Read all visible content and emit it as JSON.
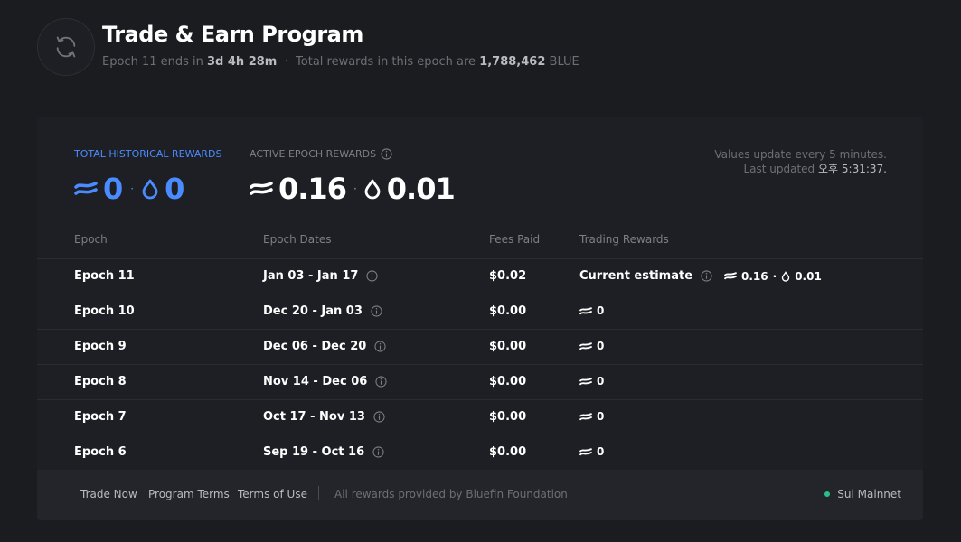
{
  "header": {
    "title": "Trade & Earn Program",
    "subtitle_prefix": "Epoch 11 ends in",
    "time_left": "3d 4h 28m",
    "subtitle_mid": "Total rewards in this epoch are",
    "total_rewards": "1,788,462",
    "token": "BLUE",
    "icon": "refresh-icon"
  },
  "stats": {
    "historical_label": "TOTAL HISTORICAL REWARDS",
    "historical_blue": "0",
    "historical_sui": "0",
    "active_label": "ACTIVE EPOCH REWARDS",
    "active_blue": "0.16",
    "active_sui": "0.01",
    "update_line1": "Values update every 5 minutes.",
    "update_prefix": "Last updated",
    "update_time": "오후 5:31:37."
  },
  "table": {
    "headers": [
      "Epoch",
      "Epoch Dates",
      "Fees Paid",
      "Trading Rewards"
    ],
    "rows": [
      {
        "epoch": "Epoch  11",
        "dates": "Jan 03 - Jan 17",
        "fees": "$0.02",
        "reward_label": "Current estimate",
        "reward_blue": "0.16",
        "reward_sui": "0.01"
      },
      {
        "epoch": "Epoch  10",
        "dates": "Dec 20 - Jan 03",
        "fees": "$0.00",
        "reward": "0"
      },
      {
        "epoch": "Epoch  9",
        "dates": "Dec 06 - Dec 20",
        "fees": "$0.00",
        "reward": "0"
      },
      {
        "epoch": "Epoch  8",
        "dates": "Nov 14 - Dec 06",
        "fees": "$0.00",
        "reward": "0"
      },
      {
        "epoch": "Epoch  7",
        "dates": "Oct 17 - Nov 13",
        "fees": "$0.00",
        "reward": "0"
      },
      {
        "epoch": "Epoch  6",
        "dates": "Sep 19 - Oct 16",
        "fees": "$0.00",
        "reward": "0"
      }
    ]
  },
  "footer": {
    "trade_now": "Trade Now",
    "program_terms": "Program Terms",
    "terms_of_use": "Terms of Use",
    "provided": "All rewards provided by Bluefin Foundation",
    "network": "Sui Mainnet"
  },
  "colors": {
    "background": "#1b1c20",
    "card": "#1e1f24",
    "accent_blue": "#4a8cff",
    "status_green": "#27c08a"
  }
}
